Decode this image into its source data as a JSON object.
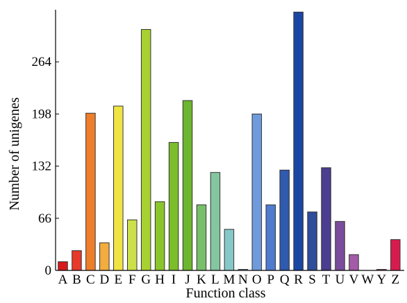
{
  "chart_data": {
    "type": "bar",
    "title": "",
    "xlabel": "Function class",
    "ylabel": "Number of unigenes",
    "ylim": [
      0,
      330
    ],
    "yticks": [
      0,
      66,
      132,
      198,
      264
    ],
    "grid": false,
    "legend": "none",
    "categories": [
      "A",
      "B",
      "C",
      "D",
      "E",
      "F",
      "G",
      "H",
      "I",
      "J",
      "K",
      "L",
      "M",
      "N",
      "O",
      "P",
      "Q",
      "R",
      "S",
      "T",
      "U",
      "V",
      "W",
      "Y",
      "Z"
    ],
    "values": [
      11,
      25,
      199,
      35,
      208,
      64,
      305,
      87,
      162,
      215,
      83,
      124,
      52,
      1,
      198,
      83,
      127,
      327,
      74,
      130,
      62,
      20,
      0,
      1,
      39
    ],
    "colors": [
      "#d7191c",
      "#e83a2a",
      "#ef7e2b",
      "#f3ac3e",
      "#f0e442",
      "#cbe04a",
      "#a7d131",
      "#8bc52d",
      "#7bbd2a",
      "#6cb52e",
      "#78bf6a",
      "#84c6a0",
      "#86c8c8",
      "#8ab3d8",
      "#6f9bdc",
      "#4f7ccf",
      "#2f5aae",
      "#1b47a4",
      "#2e4d9a",
      "#4b3d8f",
      "#7a4c9c",
      "#a35ca8",
      "#c45d9c",
      "#c45d9c",
      "#d81b4e"
    ]
  }
}
